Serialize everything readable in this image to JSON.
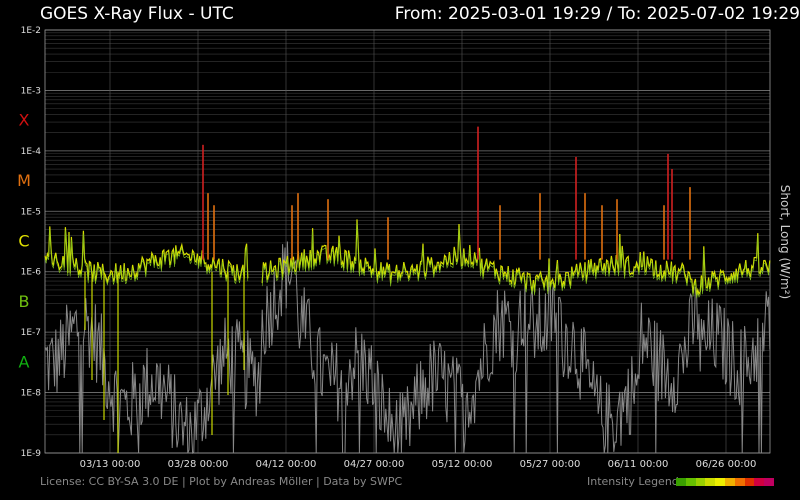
{
  "header": {
    "title_left": "GOES X-Ray Flux - UTC",
    "title_right": "From: 2025-03-01 19:29  /  To: 2025-07-02 19:29"
  },
  "footer": {
    "credits": "License: CC BY-SA 3.0 DE | Plot by Andreas Möller | Data by SWPC",
    "legend_label": "Intensity Legend"
  },
  "legend_colors": [
    "#3aa000",
    "#66c000",
    "#99d000",
    "#ccdd00",
    "#eeee00",
    "#f0b000",
    "#f07000",
    "#e03000",
    "#d00040",
    "#c00060"
  ],
  "chart_data": {
    "type": "line",
    "title": "GOES X-Ray Flux - UTC",
    "ylabel": "Short, Long (W/m²)",
    "yscale": "log",
    "ylim": [
      "1E-9",
      "1E-2"
    ],
    "ytick_labels": [
      "1E-2",
      "1E-3",
      "1E-4",
      "1E-5",
      "1E-6",
      "1E-7",
      "1E-8",
      "1E-9"
    ],
    "xtick_labels": [
      "03/13 00:00",
      "03/28 00:00",
      "04/12 00:00",
      "04/27 00:00",
      "05/12 00:00",
      "05/27 00:00",
      "06/11 00:00",
      "06/26 00:00"
    ],
    "class_labels": [
      {
        "label": "X",
        "color": "#d01010"
      },
      {
        "label": "M",
        "color": "#e07010"
      },
      {
        "label": "C",
        "color": "#e0e000"
      },
      {
        "label": "B",
        "color": "#70c010"
      },
      {
        "label": "A",
        "color": "#10b010"
      }
    ],
    "grid": true,
    "series": [
      {
        "name": "Long",
        "color": "#e0e000",
        "peaks": [
          {
            "x": "03/28",
            "y": "1.2E-4"
          },
          {
            "x": "05/10",
            "y": "2.5E-4"
          },
          {
            "x": "05/29",
            "y": "3E-5"
          },
          {
            "x": "06/03",
            "y": "8E-5"
          },
          {
            "x": "06/17",
            "y": "9E-5"
          },
          {
            "x": "06/19",
            "y": "5E-5"
          }
        ]
      },
      {
        "name": "Short",
        "color": "#888888"
      }
    ]
  }
}
